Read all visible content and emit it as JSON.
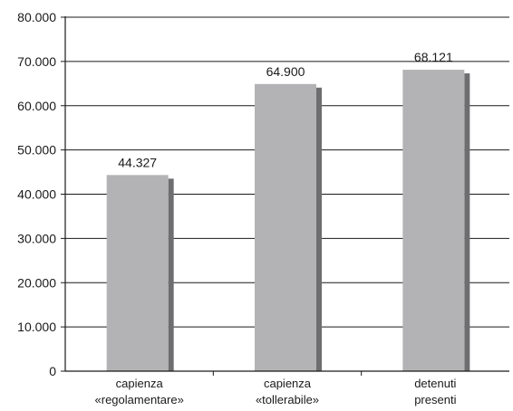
{
  "chart_data": {
    "type": "bar",
    "categories": [
      [
        "capienza",
        "«regolamentare»"
      ],
      [
        "capienza",
        "«tollerabile»"
      ],
      [
        "detenuti",
        "presenti"
      ]
    ],
    "values": [
      44327,
      64900,
      68121
    ],
    "value_labels": [
      "44.327",
      "64.900",
      "68.121"
    ],
    "yticks": [
      0,
      10000,
      20000,
      30000,
      40000,
      50000,
      60000,
      70000,
      80000
    ],
    "ytick_labels": [
      "0",
      "10.000",
      "20.000",
      "30.000",
      "40.000",
      "50.000",
      "60.000",
      "70.000",
      "80.000"
    ],
    "ylim": [
      0,
      80000
    ],
    "grid": true,
    "title": "",
    "xlabel": "",
    "ylabel": "",
    "colors": {
      "bar_front": "#b3b3b5",
      "bar_shadow": "#6e6e70",
      "grid": "#1a1a1a",
      "axis": "#1a1a1a"
    }
  }
}
